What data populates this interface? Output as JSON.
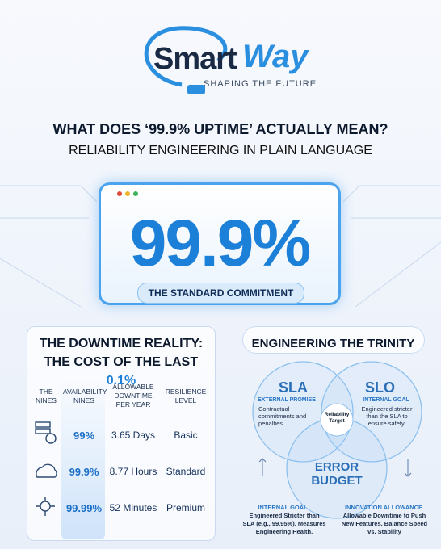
{
  "logo": {
    "brand": "Smart",
    "mark": "Way",
    "tagline": "SHAPING THE FUTURE"
  },
  "header": {
    "title": "WHAT DOES ‘99.9% UPTIME’ ACTUALLY MEAN?",
    "subtitle": "RELIABILITY ENGINEERING IN PLAIN LANGUAGE"
  },
  "hero": {
    "value": "99.9%",
    "caption": "THE STANDARD COMMITMENT"
  },
  "downtime": {
    "title_line1": "THE DOWNTIME REALITY:",
    "title_line2": "THE COST OF THE LAST",
    "title_highlight": "0.1%",
    "table": {
      "headers": [
        "THE NINES",
        "AVAILABILITY NINES",
        "ALLOWABLE DOWNTIME PER YEAR",
        "RESILIENCE LEVEL"
      ],
      "rows": [
        [
          "99%",
          "3.65 Days",
          "Basic"
        ],
        [
          "99.9%",
          "8.77 Hours",
          "Standard"
        ],
        [
          "99.99%",
          "52 Minutes",
          "Premium"
        ]
      ]
    }
  },
  "trinity": {
    "title": "ENGINEERING THE TRINITY",
    "sla": {
      "label": "SLA",
      "kicker": "EXTERNAL PROMISE",
      "text": "Contractual commitments and penalties."
    },
    "slo": {
      "label": "SLO",
      "kicker": "INTERNAL GOAL",
      "text": "Engineered stricter than the SLA to ensure safety."
    },
    "center": "Reliability Target",
    "budget": {
      "line1": "ERROR",
      "line2": "BUDGET"
    },
    "left_note": {
      "kicker": "INTERNAL GOAL",
      "text": "Engineered Stricter than SLA (e.g., 99.95%). Measures Engineering Health."
    },
    "right_note": {
      "kicker": "INNOVATION ALLOWANCE",
      "text": "Allowable Downtime to Push New Features. Balance Speed vs. Stability"
    }
  }
}
